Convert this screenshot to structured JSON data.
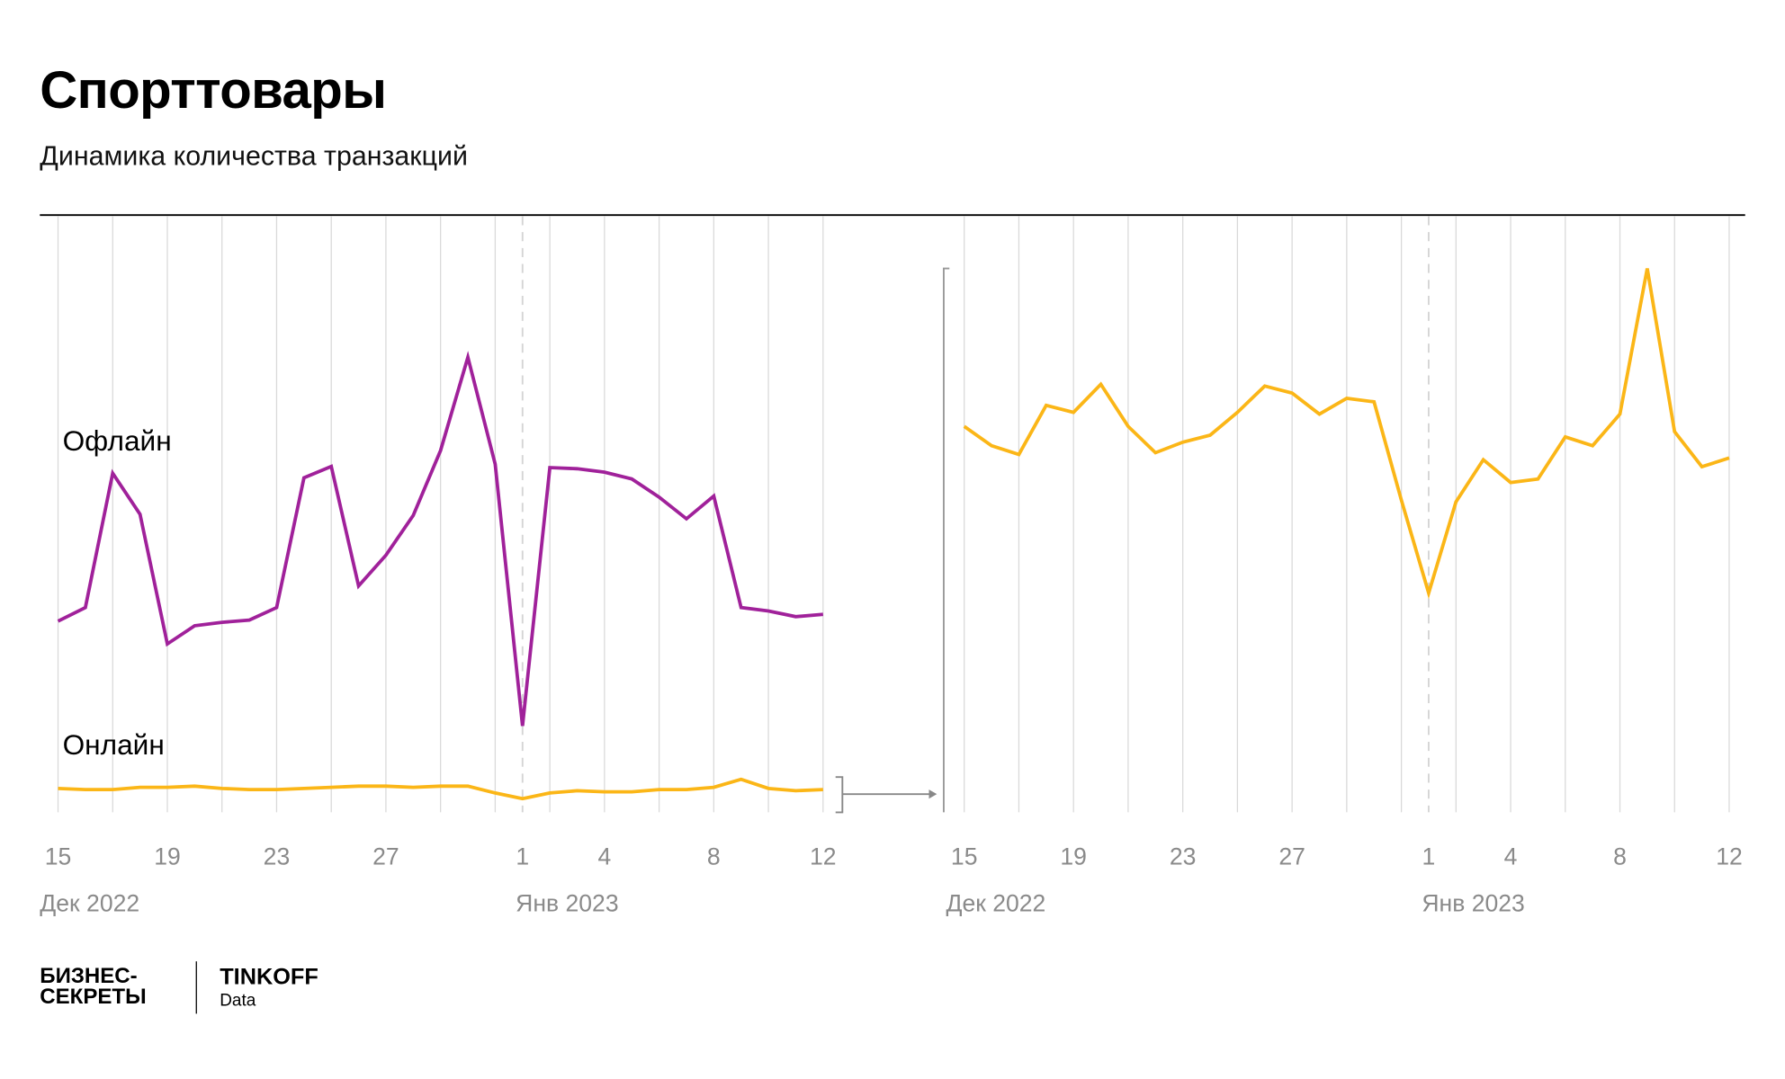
{
  "title": "Спорттовары",
  "subtitle": "Динамика количества транзакций",
  "footer": {
    "logo1_line1": "БИЗНЕС-",
    "logo1_line2": "СЕКРЕТЫ",
    "logo2": "TINKOFF",
    "logo2_sub": "Data"
  },
  "colors": {
    "offline": "#a0219a",
    "online": "#fbb617",
    "grid": "#d9d9d9",
    "axis_text": "#8a8a8a"
  },
  "chart_data": [
    {
      "type": "line",
      "title": "",
      "x": [
        "2022-12-15",
        "2022-12-16",
        "2022-12-17",
        "2022-12-18",
        "2022-12-19",
        "2022-12-20",
        "2022-12-21",
        "2022-12-22",
        "2022-12-23",
        "2022-12-24",
        "2022-12-25",
        "2022-12-26",
        "2022-12-27",
        "2022-12-28",
        "2022-12-29",
        "2022-12-30",
        "2022-12-31",
        "2023-01-01",
        "2023-01-02",
        "2023-01-03",
        "2023-01-04",
        "2023-01-05",
        "2023-01-06",
        "2023-01-07",
        "2023-01-08",
        "2023-01-09",
        "2023-01-10",
        "2023-01-11",
        "2023-01-12"
      ],
      "tick_labels": [
        "15",
        "19",
        "23",
        "27",
        "1",
        "4",
        "8",
        "12"
      ],
      "month_labels": [
        "Дек 2022",
        "Янв 2023"
      ],
      "series": [
        {
          "name": "Офлайн",
          "values": [
            168,
            180,
            298,
            262,
            148,
            164,
            167,
            169,
            180,
            294,
            304,
            199,
            226,
            261,
            318,
            400,
            306,
            76,
            303,
            302,
            299,
            293,
            277,
            258,
            278,
            180,
            177,
            172,
            174
          ]
        },
        {
          "name": "Онлайн",
          "values": [
            21,
            20,
            20,
            22,
            22,
            23,
            21,
            20,
            20,
            21,
            22,
            23,
            23,
            22,
            23,
            23,
            17,
            12,
            17,
            19,
            18,
            18,
            20,
            20,
            22,
            29,
            21,
            19,
            20
          ]
        }
      ],
      "grid": true
    },
    {
      "type": "line",
      "title": "",
      "x": [
        "2022-12-15",
        "2022-12-16",
        "2022-12-17",
        "2022-12-18",
        "2022-12-19",
        "2022-12-20",
        "2022-12-21",
        "2022-12-22",
        "2022-12-23",
        "2022-12-24",
        "2022-12-25",
        "2022-12-26",
        "2022-12-27",
        "2022-12-28",
        "2022-12-29",
        "2022-12-30",
        "2022-12-31",
        "2023-01-01",
        "2023-01-02",
        "2023-01-03",
        "2023-01-04",
        "2023-01-05",
        "2023-01-06",
        "2023-01-07",
        "2023-01-08",
        "2023-01-09",
        "2023-01-10",
        "2023-01-11",
        "2023-01-12"
      ],
      "tick_labels": [
        "15",
        "19",
        "23",
        "27",
        "1",
        "4",
        "8",
        "12"
      ],
      "month_labels": [
        "Дек 2022",
        "Янв 2023"
      ],
      "series": [
        {
          "values": [
            22.0,
            20.9,
            20.4,
            23.2,
            22.8,
            24.4,
            22.0,
            20.5,
            21.1,
            21.5,
            22.8,
            24.3,
            23.9,
            22.7,
            23.6,
            23.4,
            17.8,
            12.5,
            17.7,
            20.1,
            18.8,
            19.0,
            21.4,
            20.9,
            22.7,
            31.0,
            21.7,
            19.7,
            20.2
          ]
        }
      ],
      "grid": true
    }
  ]
}
